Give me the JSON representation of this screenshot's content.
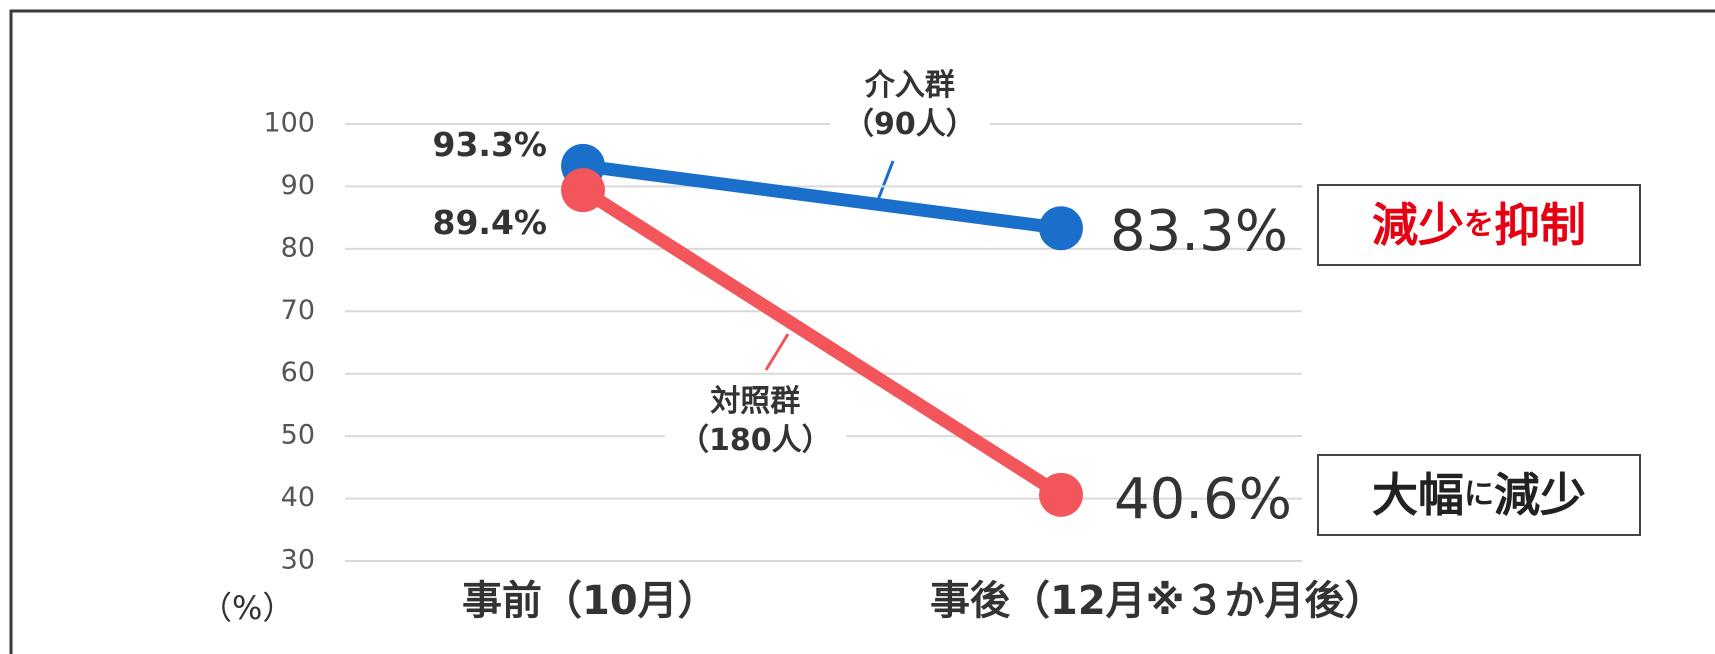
{
  "chart_data": {
    "type": "line",
    "y_axis_label": "（%）",
    "categories": [
      "事前（10月）",
      "事後（12月※３か月後）"
    ],
    "series": [
      {
        "name": "介入群\n（90人）",
        "color": "#1a6fcb",
        "values": [
          93.3,
          83.3
        ],
        "value_labels": [
          "93.3%",
          "83.3%"
        ]
      },
      {
        "name": "対照群\n（180人）",
        "color": "#f2555a",
        "values": [
          89.4,
          40.6
        ],
        "value_labels": [
          "89.4%",
          "40.6%"
        ]
      }
    ],
    "ylim": [
      30,
      100
    ],
    "yticks": [
      30,
      40,
      50,
      60,
      70,
      80,
      90,
      100
    ],
    "grid": true,
    "annotations": [
      {
        "parts": [
          {
            "text": "減少",
            "color": "#e60012",
            "emphasis": true
          },
          {
            "text": "を",
            "color": "#e60012",
            "emphasis": false
          },
          {
            "text": "抑制",
            "color": "#e60012",
            "emphasis": true
          }
        ]
      },
      {
        "parts": [
          {
            "text": "大幅",
            "color": "#222222",
            "emphasis": true
          },
          {
            "text": "に",
            "color": "#222222",
            "emphasis": false
          },
          {
            "text": "減少",
            "color": "#222222",
            "emphasis": true
          }
        ]
      }
    ]
  }
}
